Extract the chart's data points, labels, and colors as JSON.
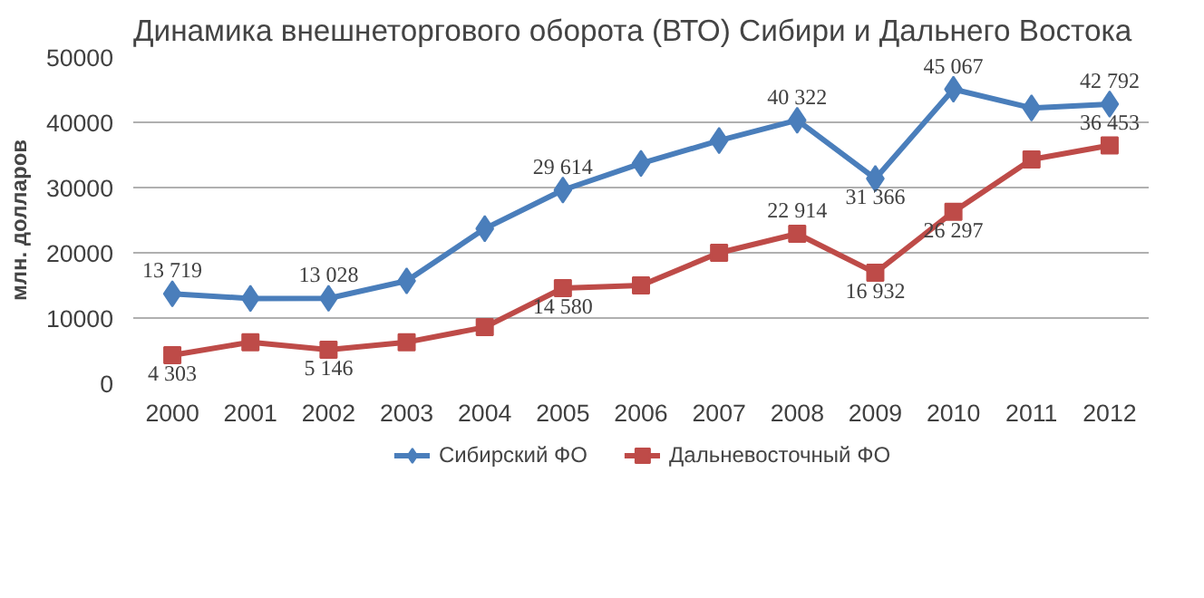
{
  "chart_data": {
    "type": "line",
    "title": "Динамика внешнеторгового оборота (ВТО) Сибири и Дальнего Востока",
    "ylabel": "млн. долларов",
    "categories": [
      "2000",
      "2001",
      "2002",
      "2003",
      "2004",
      "2005",
      "2006",
      "2007",
      "2008",
      "2009",
      "2010",
      "2011",
      "2012"
    ],
    "ylim": [
      0,
      50000
    ],
    "yticks": [
      0,
      10000,
      20000,
      30000,
      40000,
      50000
    ],
    "grid": "y",
    "legend": "bottom",
    "line_style": "solid",
    "series": [
      {
        "name": "Сибирский ФО",
        "color": "#4a7ebb",
        "marker": "diamond",
        "values": [
          13719,
          13000,
          13028,
          15700,
          23700,
          29614,
          33700,
          37200,
          40322,
          31366,
          45067,
          42200,
          42792
        ],
        "value_labels": [
          "13 719",
          null,
          "13 028",
          null,
          null,
          "29 614",
          null,
          null,
          "40 322",
          "31 366",
          "45 067",
          null,
          "42 792"
        ]
      },
      {
        "name": "Дальневосточный ФО",
        "color": "#be4b48",
        "marker": "square",
        "values": [
          4303,
          6300,
          5146,
          6300,
          8600,
          14580,
          15000,
          20000,
          22914,
          16932,
          26297,
          34300,
          36453
        ],
        "value_labels": [
          "4 303",
          null,
          "5 146",
          null,
          null,
          "14 580",
          null,
          null,
          "22 914",
          "16 932",
          "26 297",
          null,
          "36 453"
        ]
      }
    ]
  }
}
